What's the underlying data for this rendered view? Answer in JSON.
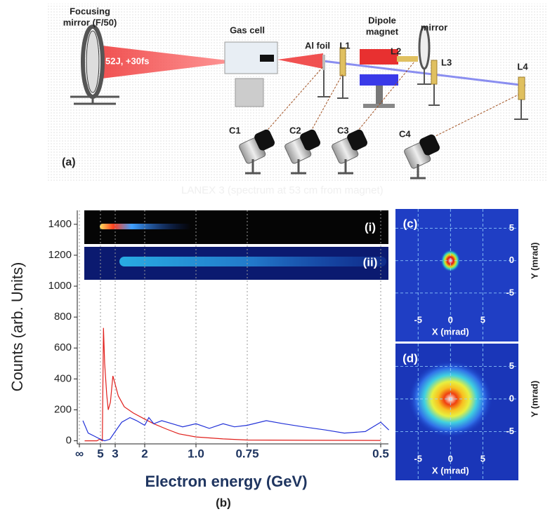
{
  "diagram": {
    "panel_label": "(a)",
    "mirror_label": [
      "Focusing",
      "mirror (F/50)"
    ],
    "laser_label": "52J, +30fs",
    "gas_cell": "Gas cell",
    "al_foil": "Al foil",
    "l1": "L1",
    "magnet_label": [
      "Dipole",
      "magnet"
    ],
    "l2": "L2",
    "mirror2": "mirror",
    "l3": "L3",
    "l4": "L4",
    "cameras": [
      "C1",
      "C2",
      "C3",
      "C4"
    ],
    "faint_caption": "LANEX 3 (spectrum at 53 cm from magnet)"
  },
  "chart_data": [
    {
      "type": "line",
      "panel_label": "(b)",
      "x_label": "Electron energy (GeV)",
      "y_label": "Counts (arb. Units)",
      "inset_labels": [
        "(i)",
        "(ii)"
      ],
      "ylim": [
        -20,
        1490
      ],
      "yticks": [
        0,
        200,
        400,
        600,
        800,
        1000,
        1200,
        1400
      ],
      "xticks": [
        {
          "value": null,
          "label": "∞"
        },
        5,
        3,
        2,
        {
          "value": 1,
          "label": "1.0"
        },
        0.75,
        0.5
      ],
      "grid": true,
      "series": [
        {
          "color": "#e0201c",
          "x": [
            20,
            6,
            5.2,
            4.6,
            4.4,
            4.2,
            3.9,
            3.7,
            3.45,
            3.2,
            3.05,
            2.85,
            2.6,
            2.3,
            2.0,
            1.7,
            1.4,
            1.2,
            1.0,
            0.85,
            0.75,
            0.6,
            0.5
          ],
          "values": [
            0,
            0,
            10,
            0,
            730,
            500,
            300,
            200,
            250,
            420,
            380,
            290,
            220,
            180,
            140,
            110,
            75,
            45,
            25,
            12,
            5,
            3,
            2
          ]
        },
        {
          "color": "#2232d8",
          "x": [
            30,
            12,
            7,
            5,
            4.2,
            3.5,
            3.0,
            2.7,
            2.4,
            2.2,
            2.0,
            1.85,
            1.7,
            1.5,
            1.3,
            1.15,
            1.0,
            0.92,
            0.85,
            0.8,
            0.75,
            0.7,
            0.66,
            0.62,
            0.58,
            0.55,
            0.52,
            0.5,
            0.49
          ],
          "values": [
            130,
            50,
            30,
            10,
            0,
            10,
            60,
            120,
            150,
            130,
            100,
            150,
            110,
            130,
            110,
            90,
            110,
            80,
            110,
            90,
            100,
            130,
            110,
            90,
            70,
            50,
            60,
            120,
            70
          ]
        }
      ]
    },
    {
      "type": "image",
      "panel_label": "(c)",
      "x_label": "X (mrad)",
      "y_label": "Y (mrad)",
      "xlim": [
        -8.5,
        10.5
      ],
      "ylim": [
        -12.5,
        8
      ],
      "xticks": [
        -5,
        0,
        5
      ],
      "yticks": [
        -5,
        0,
        5
      ],
      "grid": true
    },
    {
      "type": "image",
      "panel_label": "(d)",
      "x_label": "X (mrad)",
      "y_label": "Y (mrad)",
      "xlim": [
        -8.5,
        10.5
      ],
      "ylim": [
        -12.5,
        8.5
      ],
      "xticks": [
        -5,
        0,
        5
      ],
      "yticks": [
        -5,
        0,
        5
      ],
      "grid": true
    }
  ]
}
